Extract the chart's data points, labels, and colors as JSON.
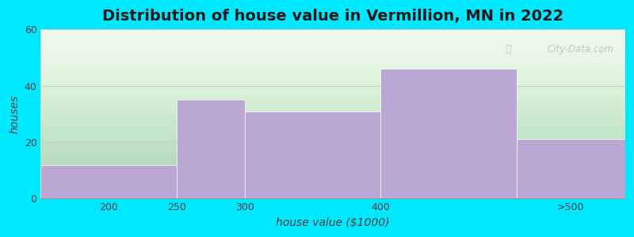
{
  "title": "Distribution of house value in Vermillion, MN in 2022",
  "xlabel": "house value ($1000)",
  "ylabel": "houses",
  "bar_ranges": [
    [
      150,
      250
    ],
    [
      250,
      300
    ],
    [
      300,
      400
    ],
    [
      400,
      500
    ],
    [
      500,
      580
    ]
  ],
  "bar_heights": [
    12,
    35,
    31,
    46,
    21
  ],
  "bar_color": "#bba8d4",
  "xlim": [
    150,
    580
  ],
  "ylim": [
    0,
    60
  ],
  "yticks": [
    0,
    20,
    40,
    60
  ],
  "xtick_labels": [
    "200",
    "250",
    "300",
    "400",
    ">500"
  ],
  "xtick_positions": [
    200,
    250,
    300,
    400,
    540
  ],
  "background_outer": "#00e8ff",
  "background_inner": "#edf8ec",
  "title_fontsize": 14,
  "axis_label_fontsize": 10,
  "tick_fontsize": 9,
  "watermark_text": "City-Data.com"
}
